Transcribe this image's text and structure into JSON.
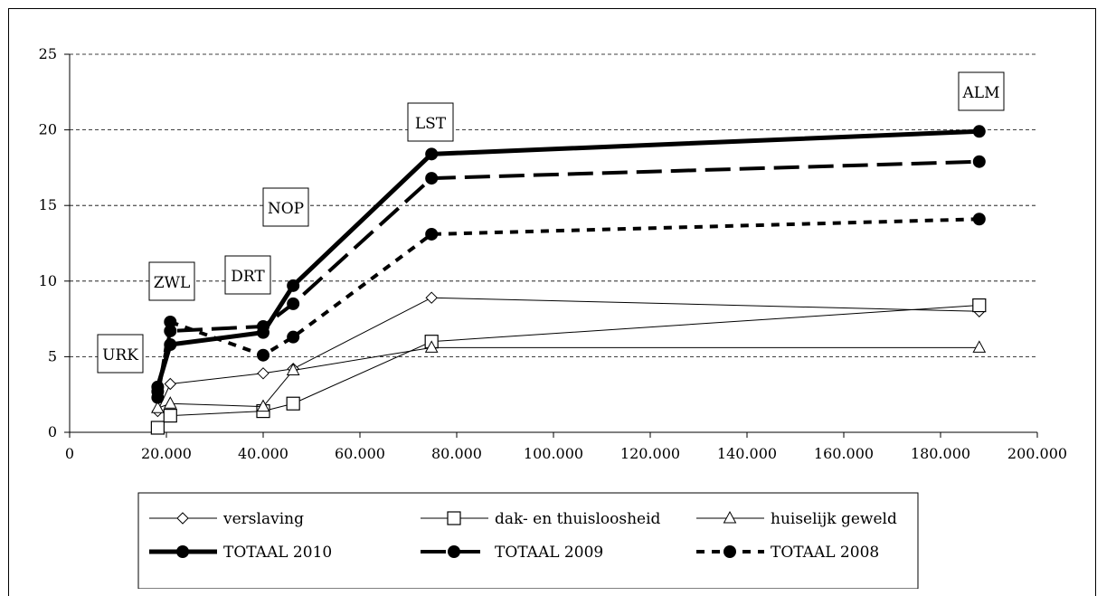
{
  "chart_data": {
    "type": "line",
    "title": "",
    "xlabel": "",
    "ylabel": "",
    "xlim": [
      0,
      200000
    ],
    "ylim": [
      0,
      25
    ],
    "x_ticks": [
      "0",
      "20.000",
      "40.000",
      "60.000",
      "80.000",
      "100.000",
      "120.000",
      "140.000",
      "160.000",
      "180.000",
      "200.000"
    ],
    "y_ticks": [
      "0",
      "5",
      "10",
      "15",
      "20",
      "25"
    ],
    "grid": "horizontal dashed",
    "legend_position": "bottom",
    "x": [
      18200,
      20800,
      40000,
      46200,
      74800,
      188000
    ],
    "point_labels": [
      {
        "text": "URK",
        "x": 18200,
        "y": 2.8
      },
      {
        "text": "ZWL",
        "x": 20800,
        "y": 6.5
      },
      {
        "text": "DRT",
        "x": 40000,
        "y": 6.5
      },
      {
        "text": "NOP",
        "x": 46200,
        "y": 9.5
      },
      {
        "text": "LST",
        "x": 74800,
        "y": 18.4
      },
      {
        "text": "ALM",
        "x": 188000,
        "y": 19.9
      }
    ],
    "series": [
      {
        "name": "verslaving",
        "marker": "diamond",
        "line": "thin",
        "values": [
          1.4,
          3.2,
          3.9,
          4.2,
          8.9,
          8.0
        ]
      },
      {
        "name": "dak- en thuisloosheid",
        "marker": "square",
        "line": "thin",
        "values": [
          0.3,
          1.1,
          1.4,
          1.9,
          6.0,
          8.4
        ]
      },
      {
        "name": "huiselijk geweld",
        "marker": "triangle",
        "line": "thin",
        "values": [
          1.6,
          1.9,
          1.7,
          4.1,
          5.6,
          5.6
        ]
      },
      {
        "name": "TOTAAL 2010",
        "marker": "circle",
        "line": "thick",
        "values": [
          3.0,
          5.8,
          6.6,
          9.7,
          18.4,
          19.9
        ]
      },
      {
        "name": "TOTAAL 2009",
        "marker": "circle",
        "line": "long-dash",
        "values": [
          2.7,
          6.7,
          7.0,
          8.5,
          16.8,
          17.9
        ]
      },
      {
        "name": "TOTAAL 2008",
        "marker": "circle",
        "line": "short-dash",
        "values": [
          2.3,
          7.3,
          5.1,
          6.3,
          13.1,
          14.1
        ]
      }
    ]
  }
}
